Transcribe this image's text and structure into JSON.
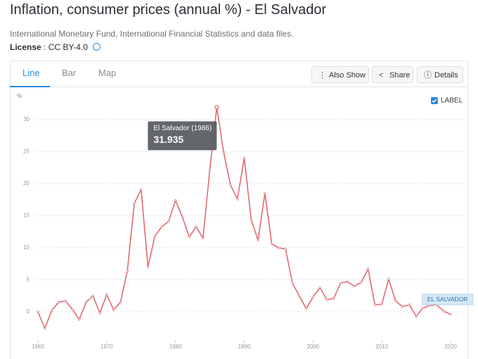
{
  "header": {
    "title": "Inflation, consumer prices (annual %) - El Salvador",
    "source": "International Monetary Fund, International Financial Statistics and data files.",
    "license_label": "License",
    "license_value": ": CC BY-4.0"
  },
  "tabs": [
    "Line",
    "Bar",
    "Map"
  ],
  "buttons": [
    "Also Show",
    "Share",
    "Details"
  ],
  "label_toggle": "LABEL",
  "chart_data": {
    "type": "line",
    "y_label": "%",
    "x": [
      1960,
      1961,
      1962,
      1963,
      1964,
      1965,
      1966,
      1967,
      1968,
      1969,
      1970,
      1971,
      1972,
      1973,
      1974,
      1975,
      1976,
      1977,
      1978,
      1979,
      1980,
      1981,
      1982,
      1983,
      1984,
      1985,
      1986,
      1987,
      1988,
      1989,
      1990,
      1991,
      1992,
      1993,
      1994,
      1995,
      1996,
      1997,
      1998,
      1999,
      2000,
      2001,
      2002,
      2003,
      2004,
      2005,
      2006,
      2007,
      2008,
      2009,
      2010,
      2011,
      2012,
      2013,
      2014,
      2015,
      2016,
      2017,
      2018,
      2019,
      2020
    ],
    "series": [
      {
        "name": "EL SALVADOR",
        "color": "#e0626b",
        "values": [
          0.0,
          -2.6,
          0.2,
          1.5,
          1.7,
          0.4,
          -1.2,
          1.5,
          2.5,
          -0.2,
          2.7,
          0.3,
          1.5,
          6.4,
          16.9,
          19.1,
          7.0,
          11.8,
          13.3,
          14.1,
          17.4,
          14.8,
          11.7,
          13.3,
          11.5,
          22.3,
          31.935,
          24.9,
          19.8,
          17.6,
          24.0,
          14.4,
          11.2,
          18.5,
          10.6,
          10.0,
          9.8,
          4.5,
          2.5,
          0.5,
          2.3,
          3.8,
          1.9,
          2.1,
          4.5,
          4.7,
          4.0,
          4.6,
          6.7,
          1.1,
          1.2,
          5.1,
          1.7,
          0.8,
          1.1,
          -0.7,
          0.6,
          1.0,
          1.1,
          0.1,
          -0.4
        ]
      }
    ],
    "tooltip_title": "El Salvador (1986)",
    "xlim": [
      1960,
      2020
    ],
    "xticks": [
      1960,
      1970,
      1980,
      1990,
      2000,
      2010,
      2020
    ],
    "ylim": [
      -4,
      33
    ],
    "yticks": [
      0,
      5,
      10,
      15,
      20,
      25,
      30
    ],
    "grid": true
  }
}
